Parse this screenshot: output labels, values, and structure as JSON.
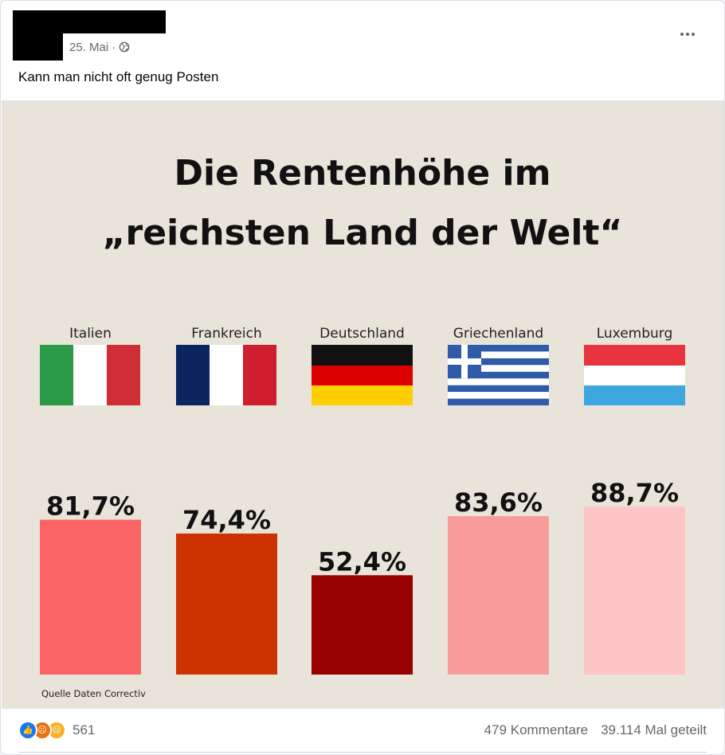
{
  "post": {
    "date": "25. Mai",
    "separator": "·",
    "privacy_icon": "globe-icon",
    "more_icon": "more-options-icon",
    "text": "Kann man nicht oft genug Posten"
  },
  "image": {
    "title_line1": "Die Rentenhöhe im",
    "title_line2": "„reichsten Land der Welt“",
    "source": "Quelle Daten Correctiv",
    "background": "#e9e4da"
  },
  "chart_data": {
    "type": "bar",
    "title": "Die Rentenhöhe im „reichsten Land der Welt“",
    "categories": [
      "Italien",
      "Frankreich",
      "Deutschland",
      "Griechenland",
      "Luxemburg"
    ],
    "values": [
      81.7,
      74.4,
      52.4,
      83.6,
      88.7
    ],
    "value_labels": [
      "81,7%",
      "74,4%",
      "52,4%",
      "83,6%",
      "88,7%"
    ],
    "colors": [
      "#fc6565",
      "#cc3300",
      "#990000",
      "#f99b9b",
      "#fdc5c5"
    ],
    "flags": [
      "flag-italy",
      "flag-france",
      "flag-germany",
      "flag-greece",
      "flag-luxembourg"
    ],
    "grid": false,
    "legend": "none"
  },
  "footer": {
    "reaction_icons": [
      "like-icon",
      "angry-icon",
      "sad-icon"
    ],
    "reaction_count": "561",
    "comments": "479 Kommentare",
    "shares": "39.114 Mal geteilt"
  }
}
